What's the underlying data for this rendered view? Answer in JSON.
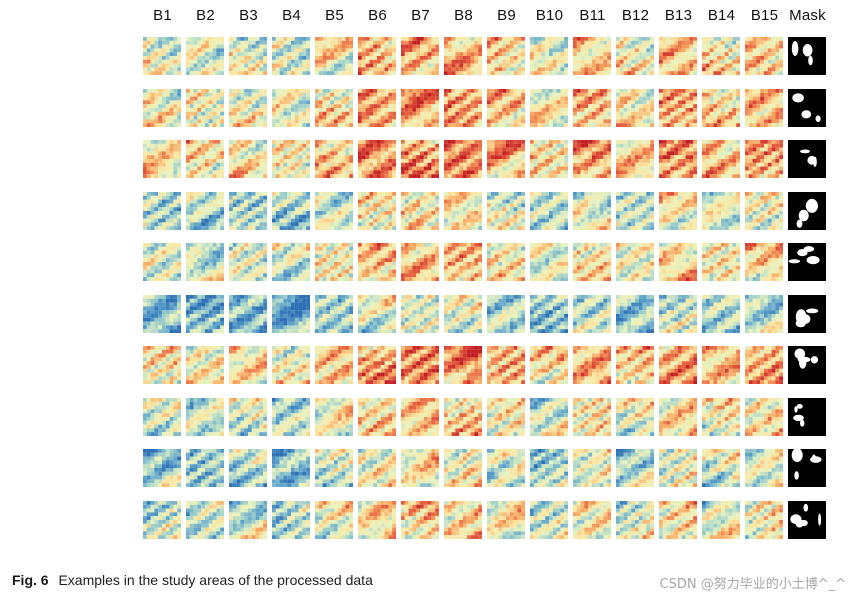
{
  "figure": {
    "column_headers": [
      "B1",
      "B2",
      "B3",
      "B4",
      "B5",
      "B6",
      "B7",
      "B8",
      "B9",
      "B10",
      "B11",
      "B12",
      "B13",
      "B14",
      "B15",
      "Mask"
    ],
    "row_count": 10,
    "colormap": [
      "#2c6fb3",
      "#5b9fca",
      "#9fcfc9",
      "#e7f3c1",
      "#fbe6a1",
      "#f6a863",
      "#e45a3c",
      "#c21e24"
    ],
    "mask_colors": [
      "#000000",
      "#ffffff"
    ]
  },
  "caption": {
    "label": "Fig. 6",
    "text": "Examples in the study areas of the processed data"
  },
  "watermark": {
    "text": "CSDN @努力毕业的小土博^_^"
  }
}
